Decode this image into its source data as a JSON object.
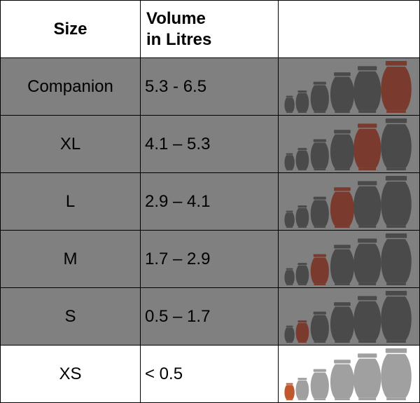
{
  "header": {
    "size_label": "Size",
    "volume_label_line1": "Volume",
    "volume_label_line2": "in Litres",
    "image_label": ""
  },
  "rows": [
    {
      "size": "Companion",
      "volume": "5.3 - 6.5",
      "highlight_index": 5,
      "shaded": true
    },
    {
      "size": "XL",
      "volume": "4.1 – 5.3",
      "highlight_index": 4,
      "shaded": true
    },
    {
      "size": "L",
      "volume": "2.9 – 4.1",
      "highlight_index": 3,
      "shaded": true
    },
    {
      "size": "M",
      "volume": "1.7 – 2.9",
      "highlight_index": 2,
      "shaded": true
    },
    {
      "size": "S",
      "volume": "0.5 – 1.7",
      "highlight_index": 1,
      "shaded": true
    },
    {
      "size": "XS",
      "volume": "< 0.5",
      "highlight_index": 0,
      "shaded": false
    }
  ],
  "colors": {
    "shaded_row_bg": "#808080",
    "urn_dark": "#4a4a4a",
    "urn_highlight": "#7a3a2e",
    "urn_light": "#a0a0a0",
    "urn_highlight_light": "#c0582e"
  },
  "urn_icon": "urn-icon"
}
